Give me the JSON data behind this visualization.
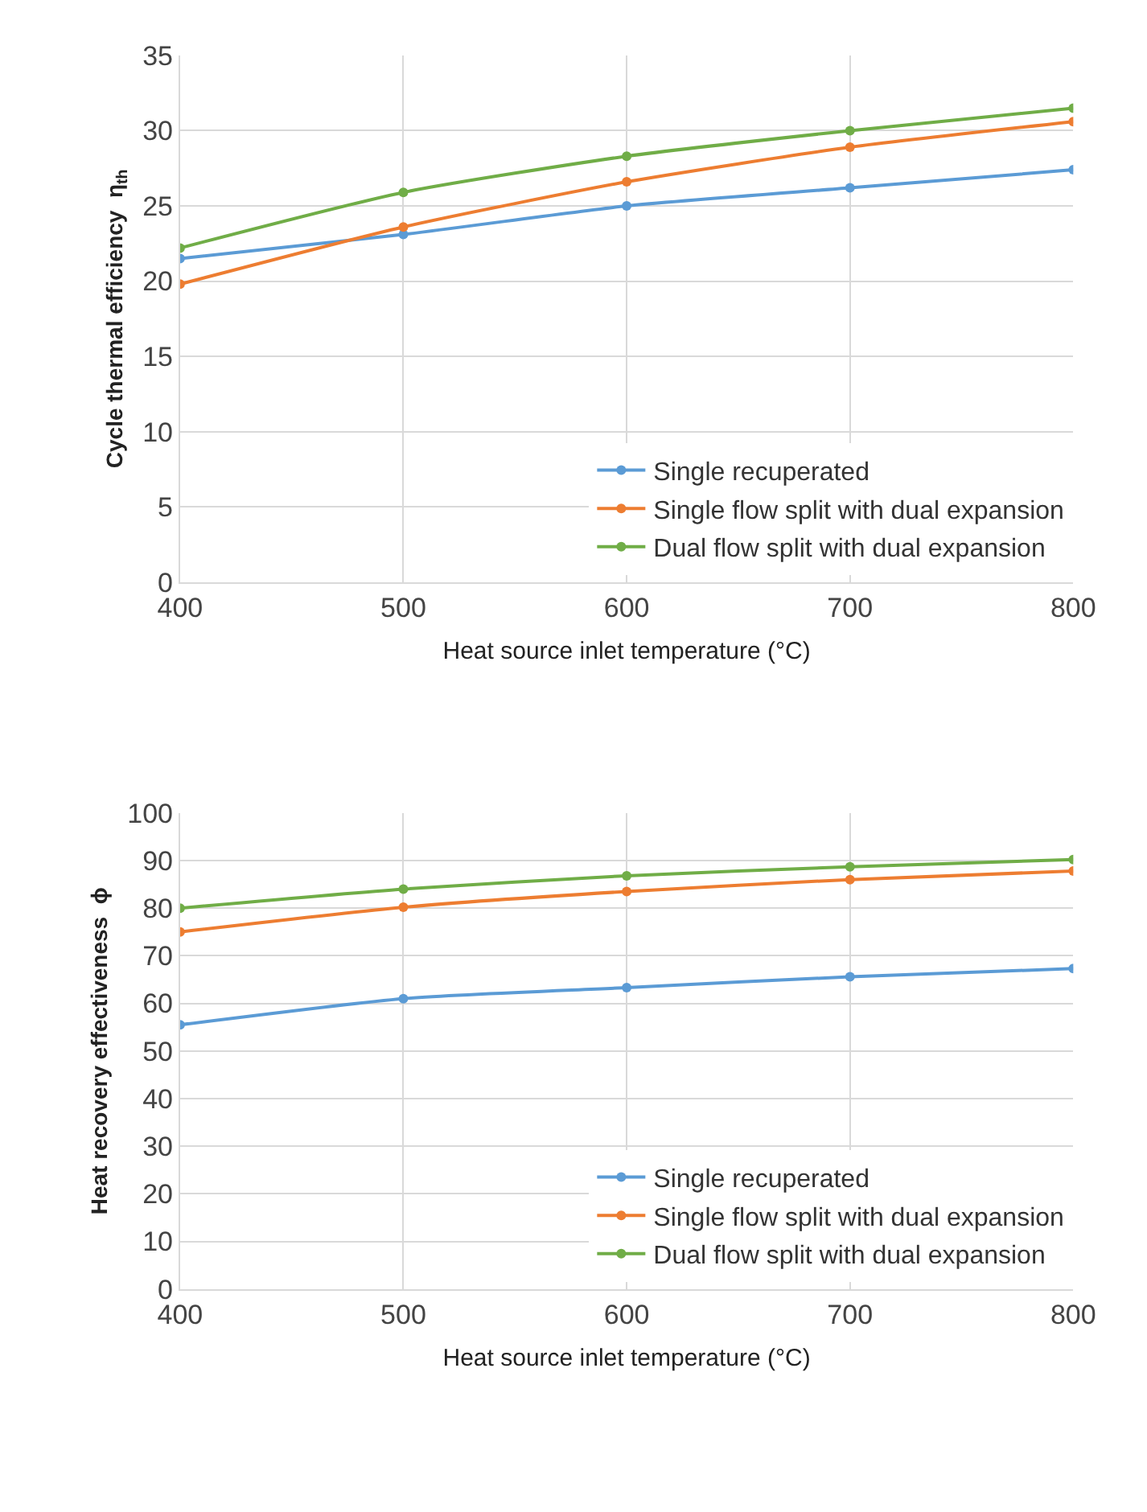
{
  "chart_data": [
    {
      "type": "line",
      "xlabel": "Heat source inlet temperature (°C)",
      "ylabel": "Cycle thermal efficiency  η$_{th}$",
      "x": [
        400,
        500,
        600,
        700,
        800
      ],
      "series": [
        {
          "name": "Single recuperated",
          "color": "#5b9bd5",
          "values": [
            21.5,
            23.1,
            25.0,
            26.2,
            27.4
          ]
        },
        {
          "name": "Single flow split with dual expansion",
          "color": "#ed7d31",
          "values": [
            19.8,
            23.6,
            26.6,
            28.9,
            30.6
          ]
        },
        {
          "name": "Dual flow split with dual expansion",
          "color": "#70ad47",
          "values": [
            22.2,
            25.9,
            28.3,
            30.0,
            31.5
          ]
        }
      ],
      "xlim": [
        400,
        800
      ],
      "xticks": [
        400,
        500,
        600,
        700,
        800
      ],
      "ylim": [
        0,
        35
      ],
      "yticks": [
        0,
        5,
        10,
        15,
        20,
        25,
        30,
        35
      ],
      "grid": true,
      "legend": "bottom right",
      "marker": "circle",
      "line_style": "solid"
    },
    {
      "type": "line",
      "xlabel": "Heat source inlet temperature (°C)",
      "ylabel": "Heat recovery effectiveness  ϕ",
      "x": [
        400,
        500,
        600,
        700,
        800
      ],
      "series": [
        {
          "name": "Single recuperated",
          "color": "#5b9bd5",
          "values": [
            55.5,
            61.0,
            63.3,
            65.6,
            67.3
          ]
        },
        {
          "name": "Single flow split with dual expansion",
          "color": "#ed7d31",
          "values": [
            75.0,
            80.2,
            83.5,
            86.0,
            87.8
          ]
        },
        {
          "name": "Dual flow split with dual expansion",
          "color": "#70ad47",
          "values": [
            80.0,
            84.0,
            86.8,
            88.7,
            90.2
          ]
        }
      ],
      "xlim": [
        400,
        800
      ],
      "xticks": [
        400,
        500,
        600,
        700,
        800
      ],
      "ylim": [
        0,
        100
      ],
      "yticks": [
        0,
        10,
        20,
        30,
        40,
        50,
        60,
        70,
        80,
        90,
        100
      ],
      "grid": true,
      "legend": "bottom right",
      "marker": "circle",
      "line_style": "solid"
    }
  ]
}
